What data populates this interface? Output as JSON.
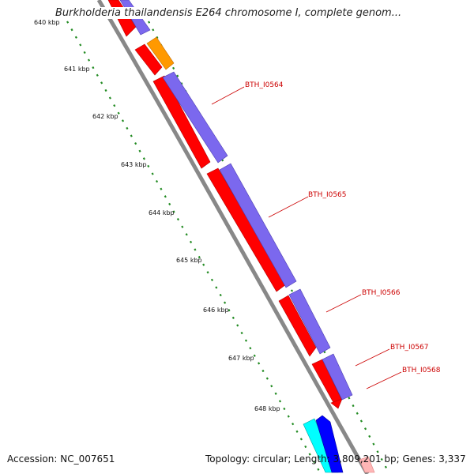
{
  "title": "Burkholderia thailandensis E264 chromosome I, complete genom...",
  "footer": {
    "accession": "Accession: NC_007651",
    "summary": "Topology: circular; Length: 3,809,201 bp; Genes: 3,337"
  },
  "colors": {
    "backbone": "#888888",
    "cds_red": "#ff0000",
    "cds_purple": "#7b68ee",
    "cds_orange": "#ff9900",
    "cds_cyan": "#00ffff",
    "cds_blue": "#0000ff",
    "tick_green": "#228b22",
    "label_red": "#cc0000"
  },
  "ticks": [
    "640 kbp",
    "641 kbp",
    "642 kbp",
    "643 kbp",
    "644 kbp",
    "645 kbp",
    "646 kbp",
    "647 kbp",
    "648 kbp"
  ],
  "gene_labels": [
    "BTH_I0564",
    "BTH_I0565",
    "BTH_I0566",
    "BTH_I0567",
    "BTH_I0568"
  ]
}
